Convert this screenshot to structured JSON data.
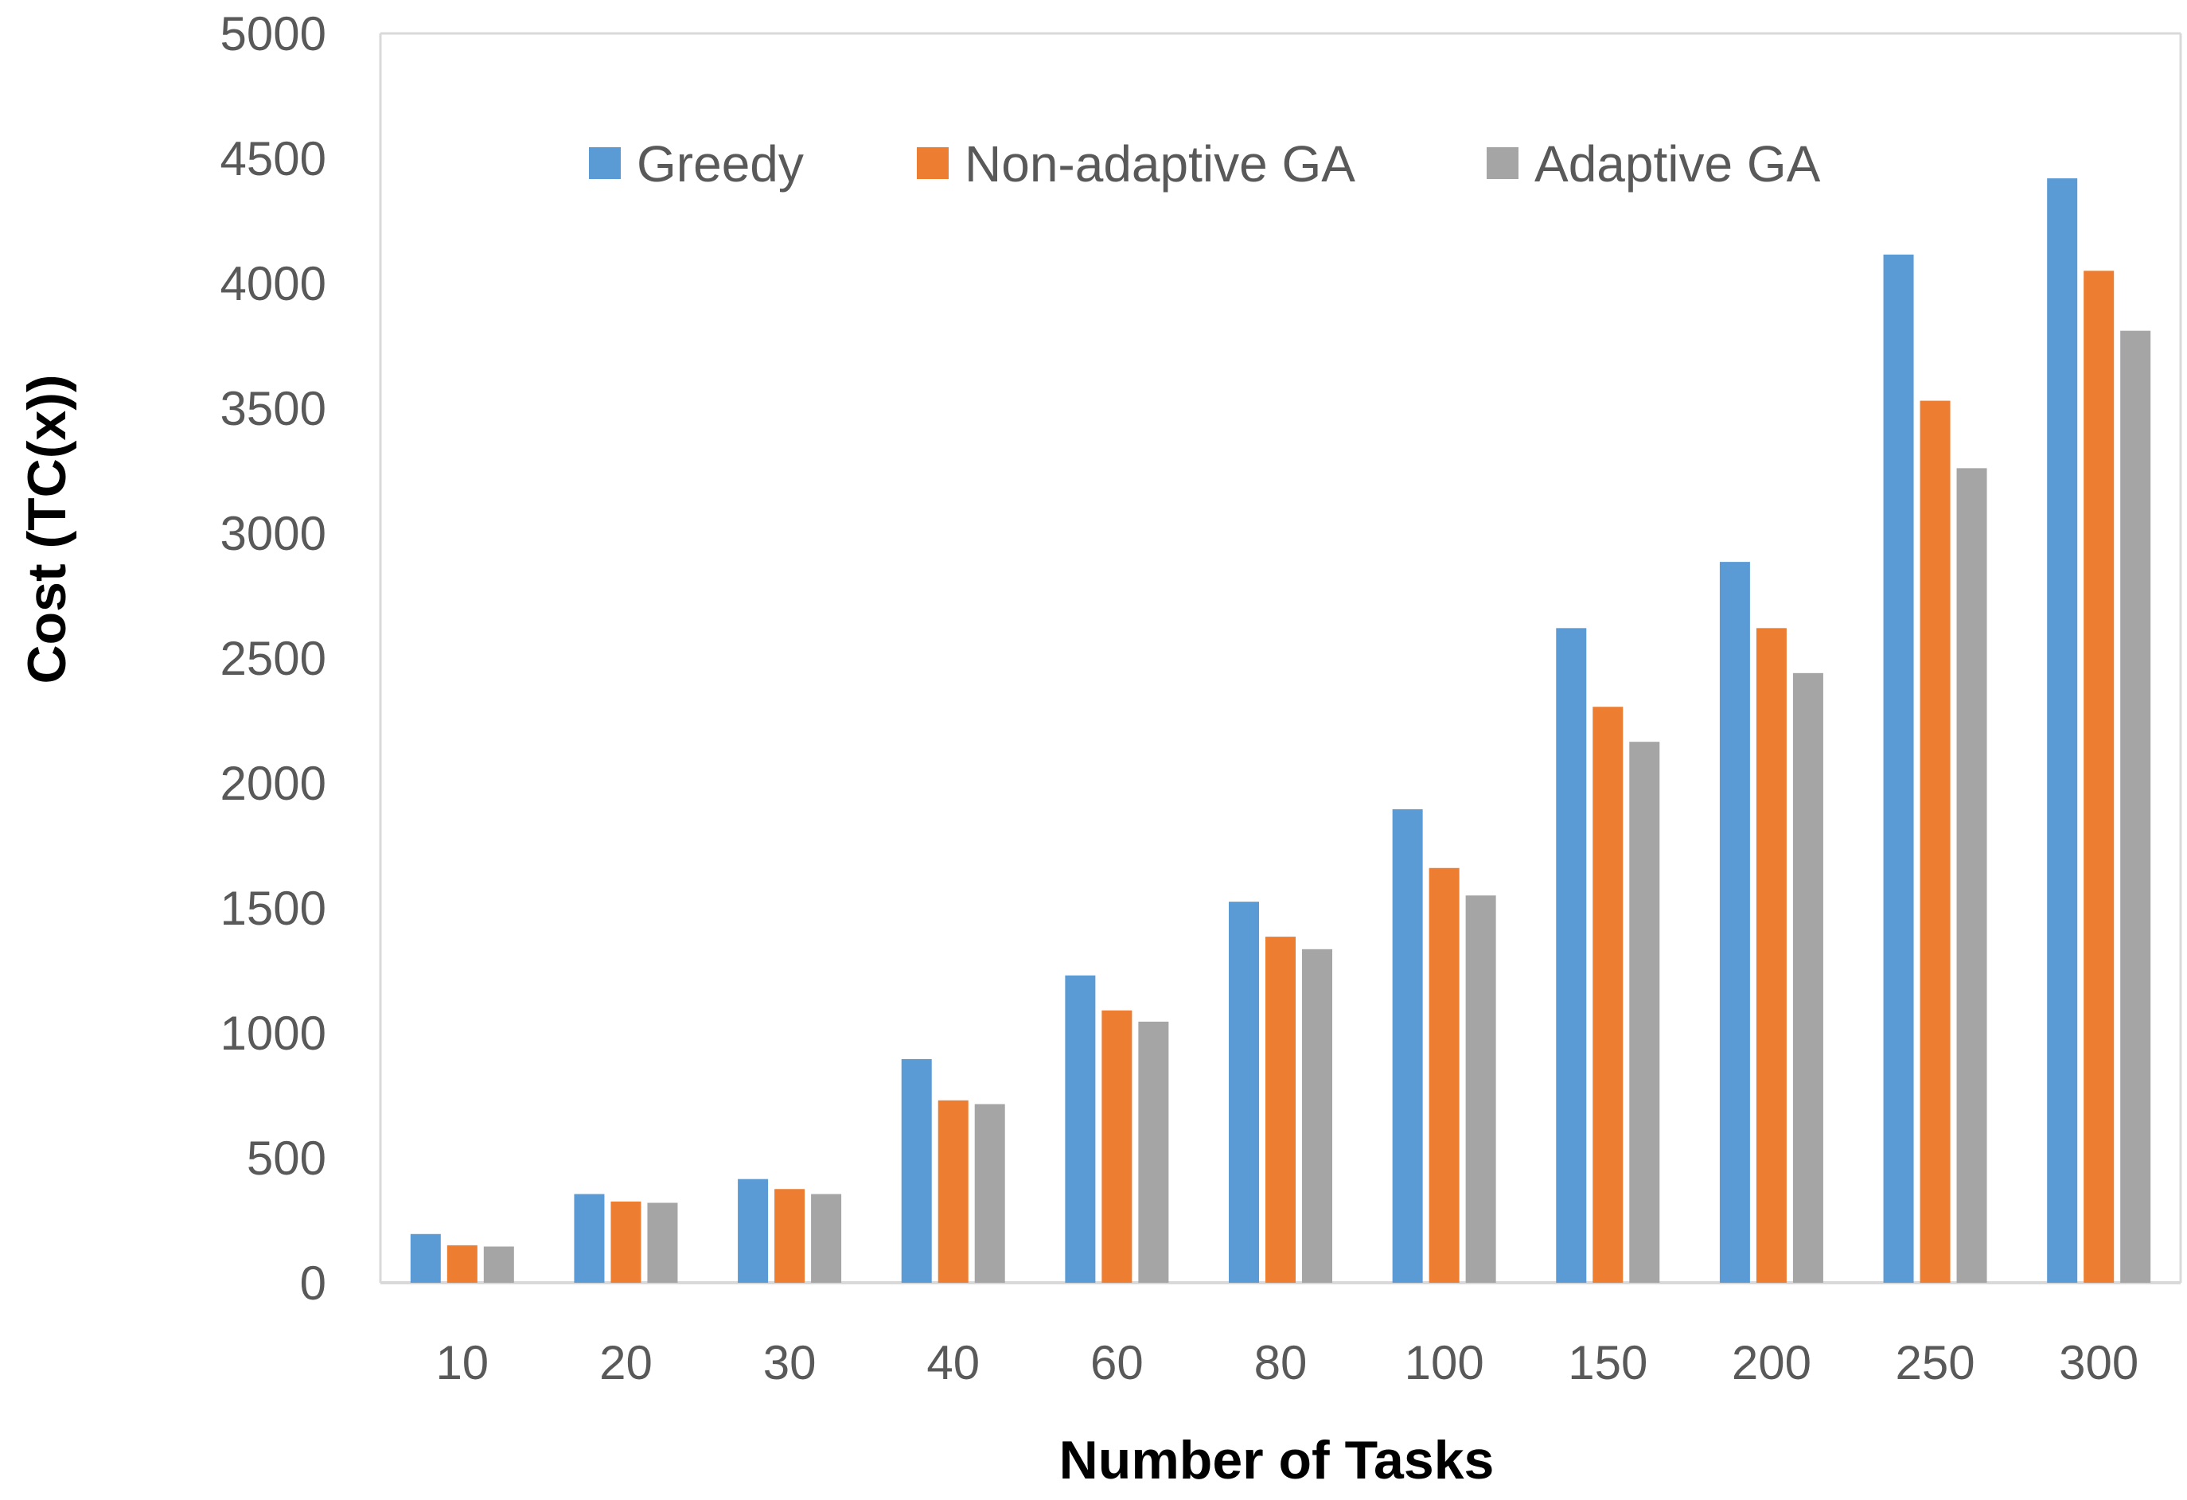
{
  "chart_data": {
    "type": "bar",
    "title": "",
    "xlabel": "Number of Tasks",
    "ylabel": "Cost (TC(x))",
    "categories": [
      "10",
      "20",
      "30",
      "40",
      "60",
      "80",
      "100",
      "150",
      "200",
      "250",
      "300"
    ],
    "series": [
      {
        "name": "Greedy",
        "color": "#5B9BD5",
        "values": [
          195,
          355,
          415,
          895,
          1230,
          1525,
          1895,
          2620,
          2885,
          4115,
          4420
        ]
      },
      {
        "name": "Non-adaptive GA",
        "color": "#ED7D31",
        "values": [
          150,
          325,
          375,
          730,
          1090,
          1385,
          1660,
          2305,
          2620,
          3530,
          4050
        ]
      },
      {
        "name": "Adaptive GA",
        "color": "#A5A5A5",
        "values": [
          145,
          320,
          355,
          715,
          1045,
          1335,
          1550,
          2165,
          2440,
          3260,
          3810
        ]
      }
    ],
    "ylim": [
      0,
      5000
    ],
    "yticks": [
      0,
      500,
      1000,
      1500,
      2000,
      2500,
      3000,
      3500,
      4000,
      4500,
      5000
    ],
    "grid": false,
    "legend_position": "top"
  }
}
